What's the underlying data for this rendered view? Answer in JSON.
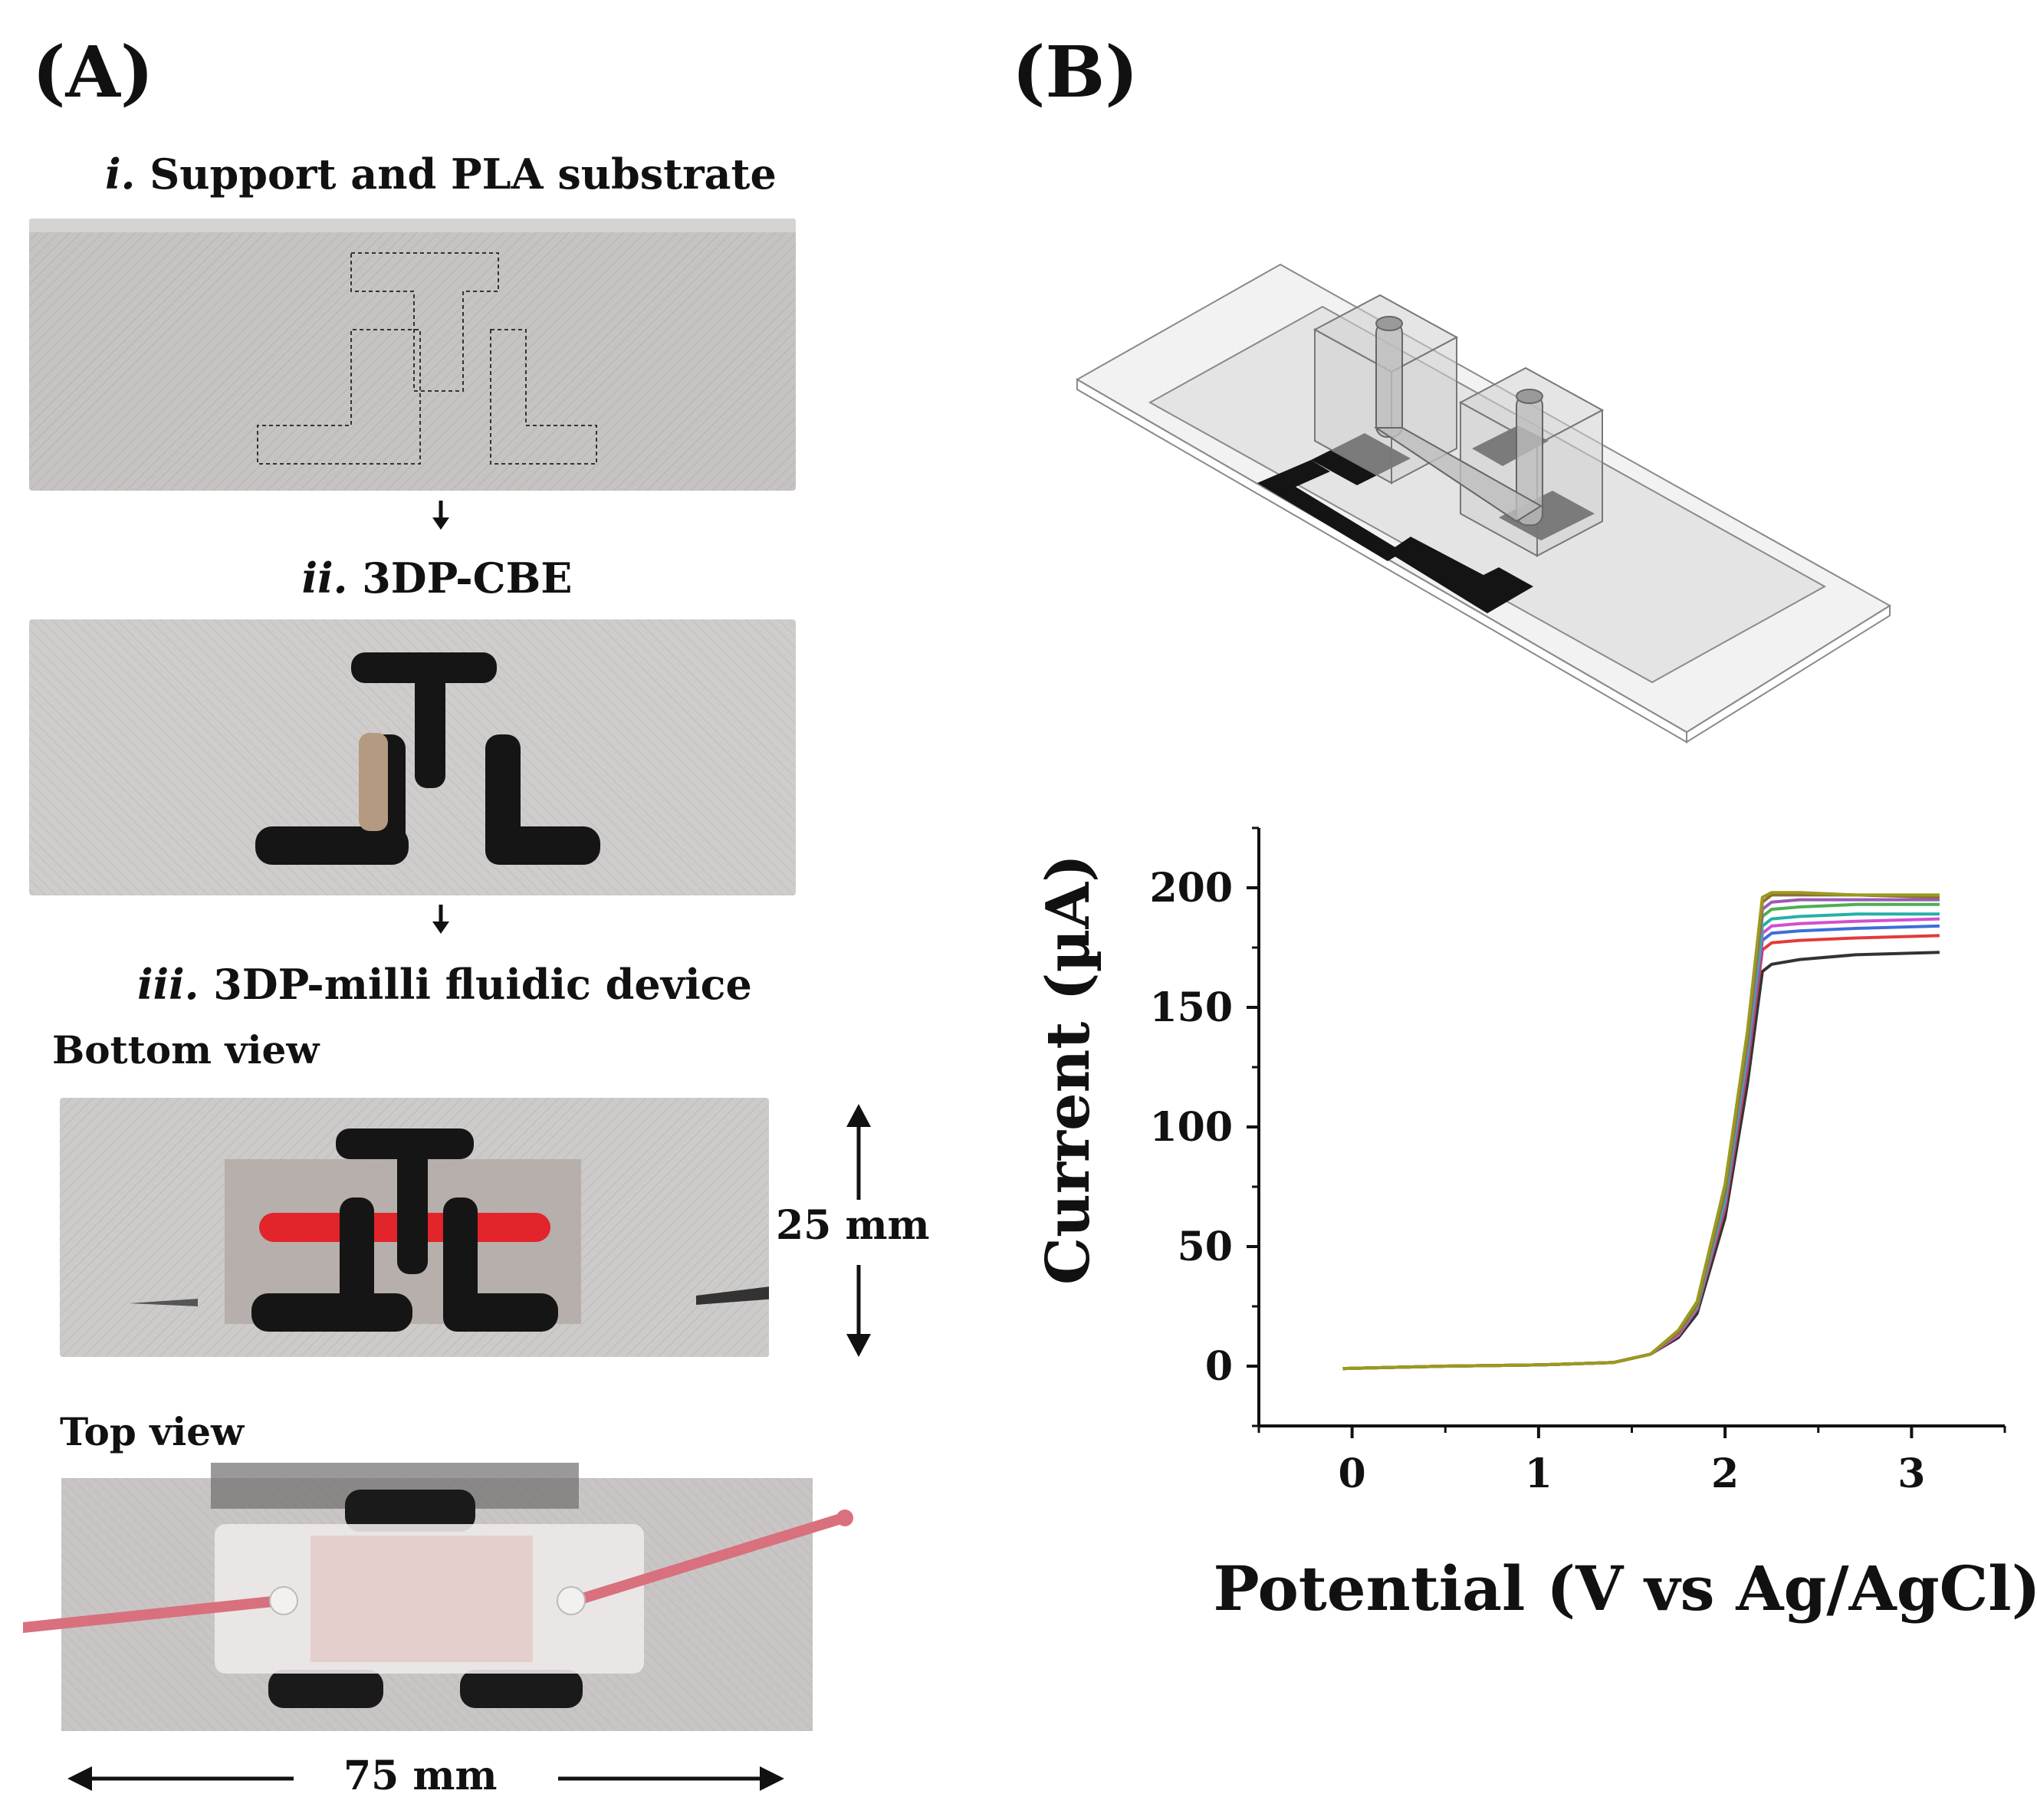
{
  "panel_a": {
    "label": "(A)",
    "step_i_num": "i.",
    "step_i_text": " Support and PLA substrate",
    "step_ii_num": "ii.",
    "step_ii_text": " 3DP-CBE",
    "step_iii_num": "iii.",
    "step_iii_text": " 3DP-milli fluidic device",
    "bottom_view": "Bottom view",
    "top_view": "Top view",
    "height_dim": "25 mm",
    "width_dim": "75 mm"
  },
  "panel_b": {
    "label": "(B)"
  },
  "colors": {
    "plate": "#c9c6c6",
    "electrode": "#151515",
    "reference": "#b49a80",
    "red_channel": "#e2242b",
    "tube": "#d9707e"
  },
  "chart_data": {
    "type": "line",
    "xlabel": "Potential (V vs Ag/AgCl)",
    "ylabel": "Current (µA)",
    "xlim": [
      -0.5,
      3.5
    ],
    "ylim": [
      -25,
      225
    ],
    "xticks": [
      0,
      1,
      2,
      3
    ],
    "yticks": [
      0,
      50,
      100,
      150,
      200
    ],
    "grid": false,
    "legend": "none",
    "series": [
      {
        "color": "#333333",
        "x": [
          -0.05,
          0.5,
          1.0,
          1.4,
          1.6,
          1.75,
          1.85,
          2.0,
          2.12,
          2.2,
          2.25,
          2.4,
          2.7,
          3.15
        ],
        "y": [
          -1,
          0,
          0.5,
          1.5,
          5,
          12,
          22,
          62,
          118,
          165,
          168,
          170,
          172,
          173
        ]
      },
      {
        "color": "#e23b3b",
        "x": [
          -0.05,
          0.5,
          1.0,
          1.4,
          1.6,
          1.75,
          1.85,
          2.0,
          2.12,
          2.2,
          2.25,
          2.4,
          2.7,
          3.15
        ],
        "y": [
          -1,
          0,
          0.5,
          1.5,
          5,
          13,
          24,
          66,
          125,
          174,
          177,
          178,
          179,
          180
        ]
      },
      {
        "color": "#3a6fd8",
        "x": [
          -0.05,
          0.5,
          1.0,
          1.4,
          1.6,
          1.75,
          1.85,
          2.0,
          2.12,
          2.2,
          2.25,
          2.4,
          2.7,
          3.15
        ],
        "y": [
          -1,
          0,
          0.5,
          1.5,
          5,
          13,
          24,
          68,
          128,
          178,
          181,
          182,
          183,
          184
        ]
      },
      {
        "color": "#d14fd1",
        "x": [
          -0.05,
          0.5,
          1.0,
          1.4,
          1.6,
          1.75,
          1.85,
          2.0,
          2.12,
          2.2,
          2.25,
          2.4,
          2.7,
          3.15
        ],
        "y": [
          -1,
          0,
          0.5,
          1.5,
          5,
          13,
          24,
          69,
          130,
          181,
          184,
          185,
          186,
          187
        ]
      },
      {
        "color": "#25b0a8",
        "x": [
          -0.05,
          0.5,
          1.0,
          1.4,
          1.6,
          1.75,
          1.85,
          2.0,
          2.12,
          2.2,
          2.25,
          2.4,
          2.7,
          3.15
        ],
        "y": [
          -1,
          0,
          0.5,
          1.5,
          5,
          14,
          25,
          70,
          132,
          184,
          187,
          188,
          189,
          189
        ]
      },
      {
        "color": "#4caf50",
        "x": [
          -0.05,
          0.5,
          1.0,
          1.4,
          1.6,
          1.75,
          1.85,
          2.0,
          2.12,
          2.2,
          2.25,
          2.4,
          2.7,
          3.15
        ],
        "y": [
          -1,
          0,
          0.5,
          1.5,
          5,
          14,
          25,
          72,
          134,
          188,
          191,
          192,
          193,
          193
        ]
      },
      {
        "color": "#9b59b6",
        "x": [
          -0.05,
          0.5,
          1.0,
          1.4,
          1.6,
          1.75,
          1.85,
          2.0,
          2.12,
          2.2,
          2.25,
          2.4,
          2.7,
          3.15
        ],
        "y": [
          -1,
          0,
          0.5,
          1.5,
          5,
          14,
          26,
          73,
          136,
          191,
          194,
          195,
          195,
          195
        ]
      },
      {
        "color": "#8d6e3a",
        "x": [
          -0.05,
          0.5,
          1.0,
          1.4,
          1.6,
          1.75,
          1.85,
          2.0,
          2.12,
          2.2,
          2.25,
          2.4,
          2.7,
          3.15
        ],
        "y": [
          -1,
          0,
          0.5,
          1.5,
          5,
          14,
          26,
          74,
          138,
          194,
          197,
          197,
          197,
          196
        ]
      },
      {
        "color": "#9a9a1c",
        "x": [
          -0.05,
          0.5,
          1.0,
          1.4,
          1.6,
          1.75,
          1.85,
          2.0,
          2.12,
          2.2,
          2.25,
          2.4,
          2.7,
          3.15
        ],
        "y": [
          -1,
          0,
          0.5,
          1.5,
          5,
          15,
          27,
          76,
          140,
          196,
          198,
          198,
          197,
          197
        ]
      }
    ]
  }
}
